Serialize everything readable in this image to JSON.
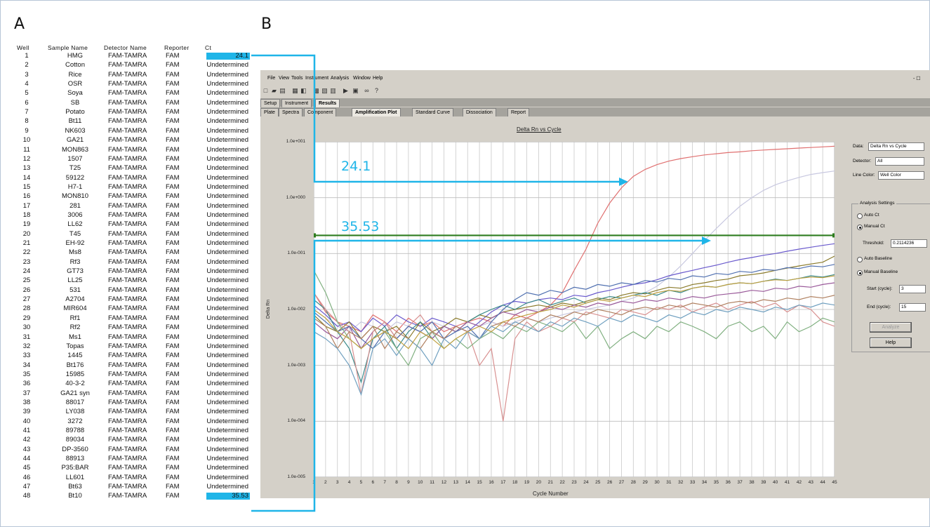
{
  "panels": {
    "a": "A",
    "b": "B"
  },
  "table": {
    "headers": {
      "well": "Well",
      "sample": "Sample Name",
      "detector": "Detector Name",
      "reporter": "Reporter",
      "ct": "Ct"
    },
    "rows": [
      [
        "1",
        "HMG",
        "FAM-TAMRA",
        "FAM",
        "24.1"
      ],
      [
        "2",
        "Cotton",
        "FAM-TAMRA",
        "FAM",
        "Undetermined"
      ],
      [
        "3",
        "Rice",
        "FAM-TAMRA",
        "FAM",
        "Undetermined"
      ],
      [
        "4",
        "OSR",
        "FAM-TAMRA",
        "FAM",
        "Undetermined"
      ],
      [
        "5",
        "Soya",
        "FAM-TAMRA",
        "FAM",
        "Undetermined"
      ],
      [
        "6",
        "SB",
        "FAM-TAMRA",
        "FAM",
        "Undetermined"
      ],
      [
        "7",
        "Potato",
        "FAM-TAMRA",
        "FAM",
        "Undetermined"
      ],
      [
        "8",
        "Bt11",
        "FAM-TAMRA",
        "FAM",
        "Undetermined"
      ],
      [
        "9",
        "NK603",
        "FAM-TAMRA",
        "FAM",
        "Undetermined"
      ],
      [
        "10",
        "GA21",
        "FAM-TAMRA",
        "FAM",
        "Undetermined"
      ],
      [
        "11",
        "MON863",
        "FAM-TAMRA",
        "FAM",
        "Undetermined"
      ],
      [
        "12",
        "1507",
        "FAM-TAMRA",
        "FAM",
        "Undetermined"
      ],
      [
        "13",
        "T25",
        "FAM-TAMRA",
        "FAM",
        "Undetermined"
      ],
      [
        "14",
        "59122",
        "FAM-TAMRA",
        "FAM",
        "Undetermined"
      ],
      [
        "15",
        "H7-1",
        "FAM-TAMRA",
        "FAM",
        "Undetermined"
      ],
      [
        "16",
        "MON810",
        "FAM-TAMRA",
        "FAM",
        "Undetermined"
      ],
      [
        "17",
        "281",
        "FAM-TAMRA",
        "FAM",
        "Undetermined"
      ],
      [
        "18",
        "3006",
        "FAM-TAMRA",
        "FAM",
        "Undetermined"
      ],
      [
        "19",
        "LL62",
        "FAM-TAMRA",
        "FAM",
        "Undetermined"
      ],
      [
        "20",
        "T45",
        "FAM-TAMRA",
        "FAM",
        "Undetermined"
      ],
      [
        "21",
        "EH-92",
        "FAM-TAMRA",
        "FAM",
        "Undetermined"
      ],
      [
        "22",
        "Ms8",
        "FAM-TAMRA",
        "FAM",
        "Undetermined"
      ],
      [
        "23",
        "Rf3",
        "FAM-TAMRA",
        "FAM",
        "Undetermined"
      ],
      [
        "24",
        "GT73",
        "FAM-TAMRA",
        "FAM",
        "Undetermined"
      ],
      [
        "25",
        "LL25",
        "FAM-TAMRA",
        "FAM",
        "Undetermined"
      ],
      [
        "26",
        "531",
        "FAM-TAMRA",
        "FAM",
        "Undetermined"
      ],
      [
        "27",
        "A2704",
        "FAM-TAMRA",
        "FAM",
        "Undetermined"
      ],
      [
        "28",
        "MIR604",
        "FAM-TAMRA",
        "FAM",
        "Undetermined"
      ],
      [
        "29",
        "Rf1",
        "FAM-TAMRA",
        "FAM",
        "Undetermined"
      ],
      [
        "30",
        "Rf2",
        "FAM-TAMRA",
        "FAM",
        "Undetermined"
      ],
      [
        "31",
        "Ms1",
        "FAM-TAMRA",
        "FAM",
        "Undetermined"
      ],
      [
        "32",
        "Topas",
        "FAM-TAMRA",
        "FAM",
        "Undetermined"
      ],
      [
        "33",
        "1445",
        "FAM-TAMRA",
        "FAM",
        "Undetermined"
      ],
      [
        "34",
        "Bt176",
        "FAM-TAMRA",
        "FAM",
        "Undetermined"
      ],
      [
        "35",
        "15985",
        "FAM-TAMRA",
        "FAM",
        "Undetermined"
      ],
      [
        "36",
        "40-3-2",
        "FAM-TAMRA",
        "FAM",
        "Undetermined"
      ],
      [
        "37",
        "GA21 syn",
        "FAM-TAMRA",
        "FAM",
        "Undetermined"
      ],
      [
        "38",
        "88017",
        "FAM-TAMRA",
        "FAM",
        "Undetermined"
      ],
      [
        "39",
        "LY038",
        "FAM-TAMRA",
        "FAM",
        "Undetermined"
      ],
      [
        "40",
        "3272",
        "FAM-TAMRA",
        "FAM",
        "Undetermined"
      ],
      [
        "41",
        "89788",
        "FAM-TAMRA",
        "FAM",
        "Undetermined"
      ],
      [
        "42",
        "89034",
        "FAM-TAMRA",
        "FAM",
        "Undetermined"
      ],
      [
        "43",
        "DP-3560",
        "FAM-TAMRA",
        "FAM",
        "Undetermined"
      ],
      [
        "44",
        "88913",
        "FAM-TAMRA",
        "FAM",
        "Undetermined"
      ],
      [
        "45",
        "P35:BAR",
        "FAM-TAMRA",
        "FAM",
        "Undetermined"
      ],
      [
        "46",
        "LL601",
        "FAM-TAMRA",
        "FAM",
        "Undetermined"
      ],
      [
        "47",
        "Bt63",
        "FAM-TAMRA",
        "FAM",
        "Undetermined"
      ],
      [
        "48",
        "Bt10",
        "FAM-TAMRA",
        "FAM",
        "35.53"
      ]
    ],
    "highlight_rows": [
      0,
      47
    ],
    "highlight_color": "#1fb5e8"
  },
  "window": {
    "menu": [
      "File",
      "View",
      "Tools",
      "Instrument",
      "Analysis",
      "Window",
      "Help"
    ],
    "window_controls": "- ☐",
    "toolbar_icons": [
      "new-icon",
      "open-icon",
      "save-icon",
      "print-icon",
      "preview-icon",
      "plate-icon",
      "grid-icon",
      "table-icon",
      "run-icon",
      "stop-icon",
      "binoculars-icon",
      "help-pointer-icon"
    ],
    "tabs_top": [
      "Setup",
      "Instrument",
      "Results"
    ],
    "tabs_results": [
      "Plate",
      "Spectra",
      "Component",
      "Amplification Plot",
      "Standard Curve",
      "Dissociation",
      "Report"
    ],
    "active_top_tab": "Results",
    "active_results_tab": "Amplification Plot"
  },
  "controls": {
    "data_label": "Data:",
    "data_value": "Delta Rn vs Cycle",
    "detector_label": "Detector:",
    "detector_value": "All",
    "line_color_label": "Line Color:",
    "line_color_value": "Well Color",
    "analysis_settings": "Analysis Settings",
    "auto_ct": "Auto Ct",
    "manual_ct": "Manual Ct",
    "threshold_label": "Threshold:",
    "threshold_value": "0.2114236",
    "auto_baseline": "Auto Baseline",
    "manual_baseline": "Manual Baseline",
    "start_label": "Start (cycle):",
    "start_value": "3",
    "end_label": "End (cycle):",
    "end_value": "15",
    "analyze_button": "Analyze",
    "help_button": "Help"
  },
  "annotations": {
    "ct1": "24.1",
    "ct2": "35.53",
    "color": "#1fb5e8"
  },
  "chart_data": {
    "type": "line",
    "title": "Delta Rn vs Cycle",
    "xlabel": "Cycle Number",
    "ylabel": "Delta Rn",
    "y_scale": "log",
    "ylim": [
      1e-05,
      10
    ],
    "xlim": [
      1,
      45
    ],
    "x_ticks": [
      "1",
      "2",
      "3",
      "4",
      "5",
      "6",
      "7",
      "8",
      "9",
      "10",
      "11",
      "12",
      "13",
      "14",
      "15",
      "16",
      "17",
      "18",
      "19",
      "20",
      "21",
      "22",
      "23",
      "24",
      "25",
      "26",
      "27",
      "28",
      "29",
      "30",
      "31",
      "32",
      "33",
      "34",
      "35",
      "36",
      "37",
      "38",
      "39",
      "40",
      "41",
      "42",
      "43",
      "44",
      "45"
    ],
    "y_ticks": [
      "1.0e+001",
      "1.0e+000",
      "1.0e-001",
      "1.0e-002",
      "1.0e-003",
      "1.0e-004",
      "1.0e-005"
    ],
    "grid": true,
    "threshold": 0.2114236,
    "threshold_color": "#2e7d1f",
    "series": [
      {
        "color": "#e07070",
        "values": [
          0.02,
          0.009,
          0.006,
          0.005,
          0.004,
          0.008,
          0.006,
          0.004,
          0.007,
          0.005,
          0.006,
          0.004,
          0.005,
          0.006,
          0.007,
          0.006,
          0.005,
          0.008,
          0.007,
          0.009,
          0.012,
          0.02,
          0.05,
          0.12,
          0.35,
          0.8,
          1.5,
          2.4,
          3.2,
          3.9,
          4.5,
          5.0,
          5.4,
          5.8,
          6.1,
          6.4,
          6.6,
          6.9,
          7.1,
          7.3,
          7.5,
          7.7,
          7.9,
          8.1,
          8.3
        ]
      },
      {
        "color": "#c8c8e0",
        "values": [
          0.01,
          0.007,
          0.005,
          0.004,
          0.006,
          0.005,
          0.004,
          0.006,
          0.005,
          0.004,
          0.006,
          0.005,
          0.004,
          0.006,
          0.005,
          0.006,
          0.005,
          0.006,
          0.007,
          0.006,
          0.007,
          0.008,
          0.009,
          0.01,
          0.011,
          0.012,
          0.014,
          0.016,
          0.02,
          0.026,
          0.038,
          0.06,
          0.1,
          0.17,
          0.28,
          0.45,
          0.7,
          1.0,
          1.35,
          1.7,
          2.0,
          2.3,
          2.6,
          2.8,
          3.0
        ]
      },
      {
        "color": "#6a5acd",
        "values": [
          0.012,
          0.008,
          0.005,
          0.006,
          0.004,
          0.007,
          0.005,
          0.008,
          0.006,
          0.005,
          0.007,
          0.006,
          0.005,
          0.004,
          0.006,
          0.009,
          0.012,
          0.014,
          0.013,
          0.015,
          0.016,
          0.015,
          0.018,
          0.017,
          0.02,
          0.022,
          0.025,
          0.028,
          0.03,
          0.034,
          0.04,
          0.045,
          0.05,
          0.056,
          0.062,
          0.07,
          0.078,
          0.085,
          0.093,
          0.1,
          0.11,
          0.12,
          0.13,
          0.14,
          0.15
        ]
      },
      {
        "color": "#8a7a2a",
        "values": [
          0.008,
          0.005,
          0.004,
          0.006,
          0.003,
          0.005,
          0.004,
          0.005,
          0.003,
          0.006,
          0.004,
          0.005,
          0.007,
          0.006,
          0.008,
          0.007,
          0.009,
          0.01,
          0.011,
          0.012,
          0.011,
          0.013,
          0.012,
          0.014,
          0.016,
          0.015,
          0.018,
          0.02,
          0.019,
          0.022,
          0.025,
          0.024,
          0.028,
          0.03,
          0.033,
          0.035,
          0.04,
          0.042,
          0.045,
          0.05,
          0.055,
          0.06,
          0.065,
          0.07,
          0.09
        ]
      },
      {
        "color": "#3a8a8a",
        "values": [
          0.015,
          0.01,
          0.004,
          0.002,
          0.0005,
          0.003,
          0.005,
          0.002,
          0.004,
          0.006,
          0.003,
          0.005,
          0.004,
          0.006,
          0.008,
          0.01,
          0.012,
          0.01,
          0.013,
          0.015,
          0.012,
          0.014,
          0.016,
          0.013,
          0.015,
          0.017,
          0.016,
          0.018,
          0.02,
          0.018,
          0.022,
          0.02,
          0.024,
          0.026,
          0.025,
          0.028,
          0.03,
          0.029,
          0.032,
          0.035,
          0.033,
          0.036,
          0.04,
          0.038,
          0.042
        ]
      },
      {
        "color": "#9a5a9a",
        "values": [
          0.006,
          0.004,
          0.003,
          0.005,
          0.002,
          0.004,
          0.006,
          0.003,
          0.005,
          0.004,
          0.003,
          0.005,
          0.004,
          0.006,
          0.005,
          0.007,
          0.009,
          0.008,
          0.01,
          0.009,
          0.011,
          0.01,
          0.012,
          0.011,
          0.013,
          0.012,
          0.014,
          0.013,
          0.015,
          0.014,
          0.016,
          0.015,
          0.017,
          0.016,
          0.018,
          0.019,
          0.02,
          0.022,
          0.021,
          0.024,
          0.023,
          0.026,
          0.025,
          0.028,
          0.03
        ]
      },
      {
        "color": "#d89090",
        "values": [
          0.02,
          0.01,
          0.006,
          0.004,
          0.0003,
          0.004,
          0.006,
          0.003,
          0.005,
          0.008,
          0.004,
          0.003,
          0.005,
          0.004,
          0.001,
          0.002,
          0.0001,
          0.003,
          0.006,
          0.004,
          0.005,
          0.007,
          0.006,
          0.009,
          0.008,
          0.007,
          0.01,
          0.009,
          0.008,
          0.011,
          0.01,
          0.012,
          0.009,
          0.011,
          0.013,
          0.01,
          0.012,
          0.014,
          0.011,
          0.013,
          0.009,
          0.012,
          0.01,
          0.006,
          0.005
        ]
      },
      {
        "color": "#80b080",
        "values": [
          0.05,
          0.02,
          0.006,
          0.003,
          0.002,
          0.003,
          0.004,
          0.002,
          0.001,
          0.003,
          0.004,
          0.002,
          0.003,
          0.002,
          0.003,
          0.004,
          0.003,
          0.005,
          0.004,
          0.006,
          0.005,
          0.004,
          0.006,
          0.003,
          0.005,
          0.002,
          0.003,
          0.004,
          0.003,
          0.005,
          0.004,
          0.006,
          0.005,
          0.004,
          0.003,
          0.005,
          0.006,
          0.004,
          0.005,
          0.003,
          0.006,
          0.004,
          0.005,
          0.007,
          0.006
        ]
      },
      {
        "color": "#5070b0",
        "values": [
          0.009,
          0.006,
          0.004,
          0.005,
          0.003,
          0.002,
          0.004,
          0.003,
          0.005,
          0.004,
          0.006,
          0.003,
          0.004,
          0.005,
          0.003,
          0.006,
          0.01,
          0.015,
          0.02,
          0.018,
          0.022,
          0.02,
          0.025,
          0.023,
          0.028,
          0.026,
          0.03,
          0.028,
          0.033,
          0.031,
          0.036,
          0.034,
          0.04,
          0.038,
          0.044,
          0.042,
          0.048,
          0.046,
          0.052,
          0.05,
          0.056,
          0.054,
          0.06,
          0.058,
          0.064
        ]
      },
      {
        "color": "#b08060",
        "values": [
          0.007,
          0.005,
          0.002,
          0.004,
          0.003,
          0.005,
          0.002,
          0.004,
          0.003,
          0.002,
          0.004,
          0.003,
          0.005,
          0.004,
          0.003,
          0.005,
          0.006,
          0.005,
          0.007,
          0.006,
          0.008,
          0.007,
          0.009,
          0.008,
          0.01,
          0.009,
          0.008,
          0.01,
          0.011,
          0.01,
          0.012,
          0.011,
          0.013,
          0.012,
          0.011,
          0.013,
          0.014,
          0.013,
          0.015,
          0.014,
          0.016,
          0.015,
          0.017,
          0.016,
          0.018
        ]
      },
      {
        "color": "#70a0c0",
        "values": [
          0.004,
          0.003,
          0.002,
          0.001,
          0.0003,
          0.002,
          0.003,
          0.0015,
          0.003,
          0.002,
          0.001,
          0.003,
          0.002,
          0.004,
          0.003,
          0.005,
          0.004,
          0.006,
          0.005,
          0.004,
          0.006,
          0.005,
          0.007,
          0.006,
          0.005,
          0.007,
          0.006,
          0.008,
          0.007,
          0.006,
          0.008,
          0.007,
          0.009,
          0.008,
          0.01,
          0.009,
          0.011,
          0.01,
          0.009,
          0.011,
          0.01,
          0.012,
          0.011,
          0.013,
          0.012
        ]
      },
      {
        "color": "#c0a040",
        "values": [
          0.01,
          0.007,
          0.004,
          0.003,
          0.002,
          0.003,
          0.004,
          0.003,
          0.002,
          0.004,
          0.003,
          0.002,
          0.003,
          0.004,
          0.005,
          0.004,
          0.006,
          0.007,
          0.008,
          0.009,
          0.01,
          0.012,
          0.011,
          0.013,
          0.015,
          0.014,
          0.016,
          0.018,
          0.017,
          0.02,
          0.022,
          0.021,
          0.024,
          0.026,
          0.025,
          0.028,
          0.03,
          0.029,
          0.032,
          0.034,
          0.033,
          0.036,
          0.038,
          0.037,
          0.04
        ]
      }
    ]
  }
}
